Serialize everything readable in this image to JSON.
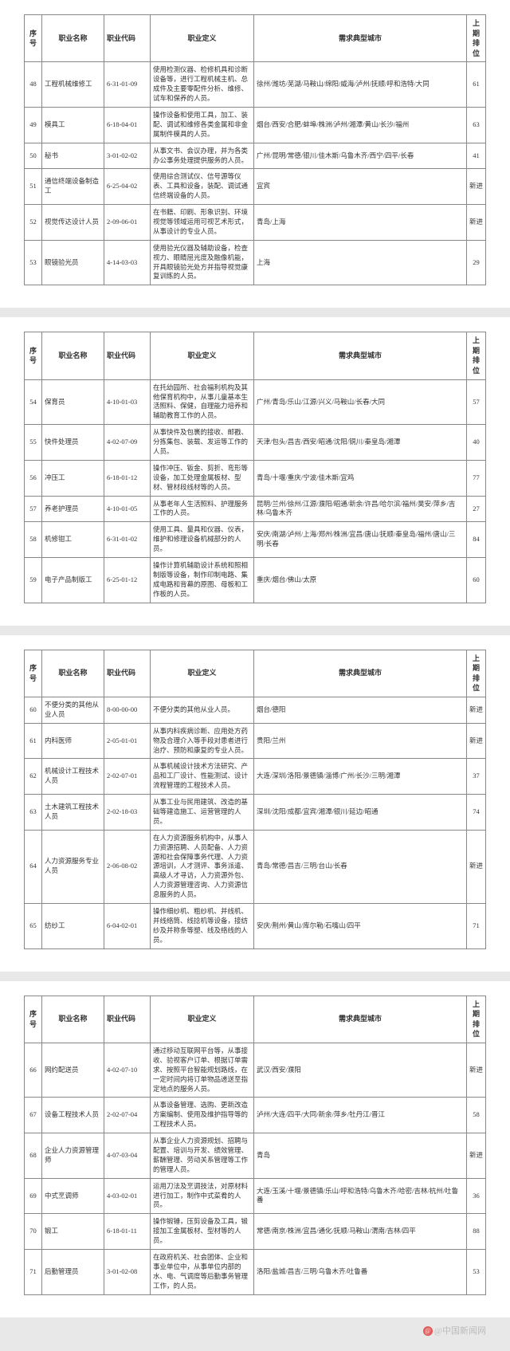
{
  "headers": {
    "seq": "序号",
    "name": "职业名称",
    "code": "职业代码",
    "def": "职业定义",
    "city": "需求典型城市",
    "rank": "上期排位"
  },
  "pages": [
    {
      "rows": [
        {
          "seq": "48",
          "name": "工程机械维修工",
          "code": "6-31-01-09",
          "def": "使用检测仪器、检修机具和诊断设备等，进行工程机械主机、总成件及主要零配件分析、维修、试车和保养的人员。",
          "city": "徐州/潍坊/芜湖/马鞍山/绵阳/威海/泸州/抚顺/呼和浩特/大同",
          "rank": "61"
        },
        {
          "seq": "49",
          "name": "模具工",
          "code": "6-18-04-01",
          "def": "操作设备和使用工具，加工、装配、调试和维修各类金属和非金属制件模具的人员。",
          "city": "烟台/西安/合肥/蚌埠/株洲/泸州/湘潭/黄山/长沙/福州",
          "rank": "63"
        },
        {
          "seq": "50",
          "name": "秘书",
          "code": "3-01-02-02",
          "def": "从事文书、会议办理，并为各类办公事务处理提供服务的人员。",
          "city": "广州/昆明/常德/银川/佳木斯/乌鲁木齐/西宁/四平/长春",
          "rank": "41"
        },
        {
          "seq": "51",
          "name": "通信终端设备制造工",
          "code": "6-25-04-02",
          "def": "使用综合测试仪、信号源等仪表、工具和设备，装配、调试通信终端设备的人员。",
          "city": "宜宾",
          "rank": "新进"
        },
        {
          "seq": "52",
          "name": "视觉传达设计人员",
          "code": "2-09-06-01",
          "def": "在书籍、印刷、形象识别、环境视觉等领域运用可视艺术形式，从事设计的专业人员。",
          "city": "青岛/上海",
          "rank": "新进"
        },
        {
          "seq": "53",
          "name": "眼镜验光员",
          "code": "4-14-03-03",
          "def": "使用验光仪器及辅助设备，检查视力、眼睛屈光度及融像机能，开具眼镜验光处方并指导视觉康复训练的人员。",
          "city": "上海",
          "rank": "29"
        }
      ]
    },
    {
      "rows": [
        {
          "seq": "54",
          "name": "保育员",
          "code": "4-10-01-03",
          "def": "在托幼园所、社会福利机构及其他保育机构中，从事儿童基本生活照料、保健，自理能力培养和辅助教育工作的人员。",
          "city": "广州/青岛/乐山/江源/兴义/马鞍山/长春/大同",
          "rank": "57"
        },
        {
          "seq": "55",
          "name": "快件处理员",
          "code": "4-02-07-09",
          "def": "从事快件及包裹的接收、邮戳、分拣集包、装载、发运等工作的人员。",
          "city": "天津/包头/昌吉/西安/昭通/沈阳/铜川/秦皇岛/湘潭",
          "rank": "40"
        },
        {
          "seq": "56",
          "name": "冲压工",
          "code": "6-18-01-12",
          "def": "操作冲压、钣金、剪折、弯形等设备，加工处理金属板材、型材、管材段线材等的人员。",
          "city": "青岛/十堰/重庆/宁波/佳木斯/宜鸡",
          "rank": "77"
        },
        {
          "seq": "57",
          "name": "养老护理员",
          "code": "4-10-01-05",
          "def": "从事老年人生活照料、护理服务工作的人员。",
          "city": "昆明/兰州/徐州/江源/濮阳/昭通/新余/许昌/哈尔滨/福州/昊安/萍乡/吉林/乌鲁木齐",
          "rank": "27"
        },
        {
          "seq": "58",
          "name": "机修钳工",
          "code": "6-31-01-02",
          "def": "使用工具、量具和仪器、仪表，维护和修理设备机械部分的人员。",
          "city": "安庆/南湖/泸州/上海/郑州/株洲/宜昌/唐山/抚顺/秦皇岛/福州/唐山/三明/长春",
          "rank": "84"
        },
        {
          "seq": "59",
          "name": "电子产品制版工",
          "code": "6-25-01-12",
          "def": "操作计算机辅助设计系统和照相制版等设备，制作印制电路、集成电路和背幕的原图、母板和工作板的人员。",
          "city": "重庆/烟台/佛山/太原",
          "rank": "60"
        }
      ]
    },
    {
      "rows": [
        {
          "seq": "60",
          "name": "不便分类的其他从业人员",
          "code": "8-00-00-00",
          "def": "不便分类的其他从业人员。",
          "city": "烟台/德阳",
          "rank": "新进"
        },
        {
          "seq": "61",
          "name": "内科医师",
          "code": "2-05-01-01",
          "def": "从事内科疾病诊断、应用处方药物及合理介入等手段对患者进行治疗、预防和康复的专业人员。",
          "city": "贵阳/兰州",
          "rank": "新进"
        },
        {
          "seq": "62",
          "name": "机械设计工程技术人员",
          "code": "2-02-07-01",
          "def": "从事机械设计技术方法研究、产品和工厂设计、性能测试、设计流程管理的工程技术人员。",
          "city": "大连/深圳/洛阳/景德镇/淄博/广州/长沙/三明/湘潭",
          "rank": "37"
        },
        {
          "seq": "63",
          "name": "土木建筑工程技术人员",
          "code": "2-02-18-03",
          "def": "从事工业与民用建筑、改造的基础等建造施工、运营管理的人员。",
          "city": "深圳/沈阳/成都/宜宾/湘潭/银川/延边/昭通",
          "rank": "74"
        },
        {
          "seq": "64",
          "name": "人力资源服务专业人员",
          "code": "2-06-08-02",
          "def": "在人力资源服务机构中，从事人力资源招聘、人员配备、人力资源和社会保障事务代理、人力资源培训，人才测评、事务派遣、高级人才寻访，人力资源外包、人力资源管理咨询、人力资源信息服务的人员。",
          "city": "青岛/常德/昌吉/三明/台山/长春",
          "rank": "新进"
        },
        {
          "seq": "65",
          "name": "纺纱工",
          "code": "6-04-02-01",
          "def": "操作细纱机、粗纱机、并线机、并线络筒、线捻机等设备，接纺纱及并称条等塑、线及络线的人员。",
          "city": "安庆/荆州/黄山/库尔勒/石嘴山/四平",
          "rank": "71"
        }
      ]
    },
    {
      "rows": [
        {
          "seq": "66",
          "name": "网约配送员",
          "code": "4-02-07-10",
          "def": "通过移动互联网平台等，从事接收、验视客户订单、根据订单需求、按照平台智能规划路线，在一定时间内将订单物品递送至指定地点的服务人员。",
          "city": "武汉/西安/濮阳",
          "rank": "新进"
        },
        {
          "seq": "67",
          "name": "设备工程技术人员",
          "code": "2-02-07-04",
          "def": "从事设备管理、选购、更新改造方案编制、使用及维护指导等的工程技术人员。",
          "city": "泸州/大连/四平/大同/新余/萍乡/牡丹江/晋江",
          "rank": "58"
        },
        {
          "seq": "68",
          "name": "企业人力资源管理师",
          "code": "4-07-03-04",
          "def": "从事企业人力资源规划、招聘与配置、培训与开发、绩效管理、薪酬管理、劳动关系管理等工作的管理人员。",
          "city": "青岛",
          "rank": "新进"
        },
        {
          "seq": "69",
          "name": "中式烹调师",
          "code": "4-03-02-01",
          "def": "运用刀法及烹调技法，对原材料进行加工，制作中式菜肴的人员。",
          "city": "大连/玉溪/十堰/景德镇/乐山/呼和浩特/乌鲁木齐/哈密/吉林/杭州/吐鲁番",
          "rank": "36"
        },
        {
          "seq": "70",
          "name": "锻工",
          "code": "6-18-01-11",
          "def": "操作锻锤，压剪设备及工具，锻接加工金属板材、型材等的人员。",
          "city": "常德/南京/株洲/宜昌/通化/抚顺/马鞍山/渭南/吉林/四平",
          "rank": "88"
        },
        {
          "seq": "71",
          "name": "后勤管理员",
          "code": "3-01-02-08",
          "def": "在政府机关、社会团体、企业和事业单位中，从事单位内部的水、电、气调度等后勤事务管理工作，的人员。",
          "city": "洛阳/盐城/昌吉/三明/乌鲁木齐/吐鲁番",
          "rank": "53"
        }
      ]
    }
  ],
  "watermark": "@中国新闻网"
}
